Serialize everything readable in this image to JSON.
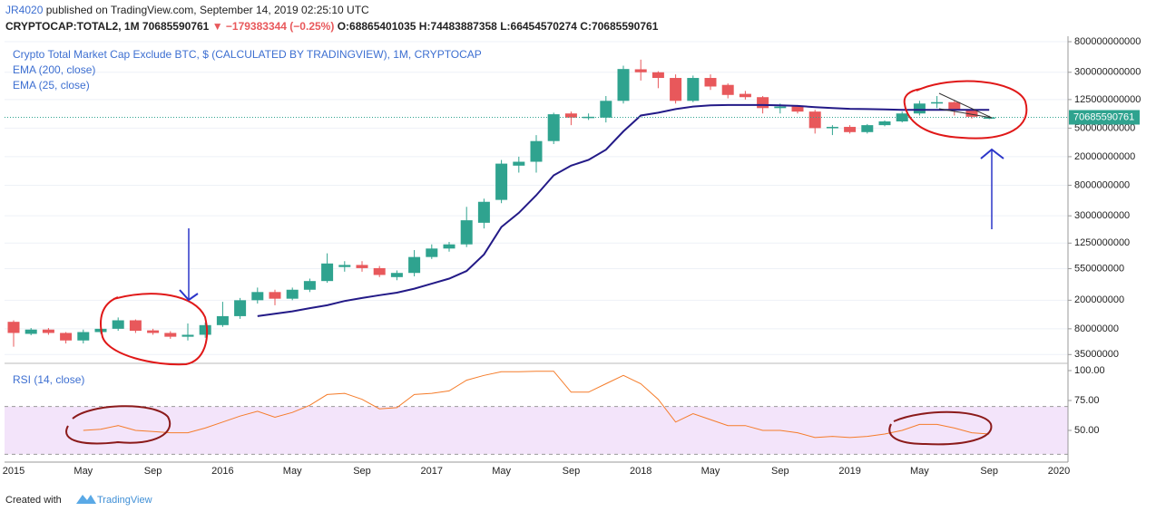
{
  "header": {
    "author": "JR4020",
    "published": "published on TradingView.com, September 14, 2019 02:25:10 UTC",
    "symbol": "CRYPTOCAP:TOTAL2, 1M",
    "last": "70685590761",
    "change": "▼ −179383344 (−0.25%)",
    "ohlc": [
      "O:68865401035",
      "H:74483887358",
      "L:66454570274",
      "C:70685590761"
    ]
  },
  "footer": {
    "created": "Created with",
    "brand": "TradingView"
  },
  "chart_data": [
    {
      "type": "candlestick",
      "title": "Crypto Total Market Cap Exclude BTC, $ (CALCULATED BY TRADINGVIEW), 1M, CRYPTOCAP",
      "studies": [
        "EMA (200, close)",
        "EMA (25, close)"
      ],
      "categories": [
        "2015",
        null,
        null,
        null,
        "May",
        null,
        null,
        null,
        "Sep",
        null,
        null,
        null,
        "2016",
        null,
        null,
        null,
        "May",
        null,
        null,
        null,
        "Sep",
        null,
        null,
        null,
        "2017",
        null,
        null,
        null,
        "May",
        null,
        null,
        null,
        "Sep",
        null,
        null,
        null,
        "2018",
        null,
        null,
        null,
        "May",
        null,
        null,
        null,
        "Sep",
        null,
        null,
        null,
        "2019",
        null,
        null,
        null,
        "May",
        null,
        null,
        null,
        "Sep",
        null,
        null,
        null,
        "2020"
      ],
      "open": [
        100000000.0,
        68000000.0,
        78000000.0,
        70000000.0,
        55000000.0,
        72000000.0,
        80000000.0,
        105000000.0,
        76000000.0,
        70000000.0,
        62000000.0,
        66000000.0,
        90000000.0,
        120000000.0,
        200000000.0,
        260000000.0,
        210000000.0,
        280000000.0,
        370000000.0,
        580000000.0,
        620000000.0,
        560000000.0,
        420000000.0,
        480000000.0,
        800000000.0,
        1050000000.0,
        1200000000.0,
        2400000000.0,
        5000000000.0,
        15000000000.0,
        17000000000.0,
        33000000000.0,
        80000000000.0,
        70000000000.0,
        70000000000.0,
        120000000000.0,
        330000000000.0,
        300000000000.0,
        250000000000.0,
        120000000000.0,
        250000000000.0,
        200000000000.0,
        150000000000.0,
        135000000000.0,
        95000000000.0,
        100000000000.0,
        85000000000.0,
        50000000000.0,
        52000000000.0,
        44000000000.0,
        55000000000.0,
        62000000000.0,
        80000000000.0,
        110000000000.0,
        115000000000.0,
        90000000000.0,
        68865401035,
        null,
        null,
        null,
        null
      ],
      "high": [
        105000000.0,
        82000000.0,
        82000000.0,
        72000000.0,
        78000000.0,
        85000000.0,
        115000000.0,
        108000000.0,
        80000000.0,
        74000000.0,
        95000000.0,
        98000000.0,
        190000000.0,
        215000000.0,
        300000000.0,
        280000000.0,
        300000000.0,
        400000000.0,
        900000000.0,
        700000000.0,
        700000000.0,
        600000000.0,
        520000000.0,
        1000000000.0,
        1200000000.0,
        1300000000.0,
        4000000000.0,
        5200000000.0,
        18000000000.0,
        20000000000.0,
        40000000000.0,
        82000000000.0,
        85000000000.0,
        80000000000.0,
        140000000000.0,
        370000000000.0,
        450000000000.0,
        310000000000.0,
        280000000000.0,
        270000000000.0,
        280000000000.0,
        210000000000.0,
        165000000000.0,
        140000000000.0,
        110000000000.0,
        105000000000.0,
        90000000000.0,
        55000000000.0,
        55000000000.0,
        57000000000.0,
        64000000000.0,
        85000000000.0,
        120000000000.0,
        140000000000.0,
        120000000000.0,
        95000000000.0,
        74483887358,
        null,
        null,
        null,
        null
      ],
      "low": [
        45000000.0,
        65000000.0,
        66000000.0,
        50000000.0,
        50000000.0,
        68000000.0,
        75000000.0,
        70000000.0,
        66000000.0,
        58000000.0,
        55000000.0,
        60000000.0,
        85000000.0,
        110000000.0,
        180000000.0,
        170000000.0,
        200000000.0,
        260000000.0,
        350000000.0,
        500000000.0,
        500000000.0,
        420000000.0,
        380000000.0,
        430000000.0,
        750000000.0,
        950000000.0,
        1100000000.0,
        2000000000.0,
        4500000000.0,
        12000000000.0,
        12000000000.0,
        30000000000.0,
        55000000000.0,
        65000000000.0,
        60000000000.0,
        110000000000.0,
        230000000000.0,
        180000000000.0,
        110000000000.0,
        115000000000.0,
        170000000000.0,
        130000000000.0,
        125000000000.0,
        80000000000.0,
        80000000000.0,
        80000000000.0,
        42000000000.0,
        40000000000.0,
        42000000000.0,
        42000000000.0,
        53000000000.0,
        60000000000.0,
        75000000000.0,
        95000000000.0,
        75000000000.0,
        68000000000.0,
        66454570274,
        null,
        null,
        null,
        null
      ],
      "close": [
        70000000.0,
        78000000.0,
        70000000.0,
        55000000.0,
        72000000.0,
        80000000.0,
        105000000.0,
        75000000.0,
        70000000.0,
        62000000.0,
        66000000.0,
        90000000.0,
        120000000.0,
        200000000.0,
        260000000.0,
        210000000.0,
        280000000.0,
        370000000.0,
        650000000.0,
        620000000.0,
        560000000.0,
        450000000.0,
        480000000.0,
        800000000.0,
        1050000000.0,
        1200000000.0,
        2600000000.0,
        4700000000.0,
        16000000000.0,
        17000000000.0,
        33000000000.0,
        78000000000.0,
        70000000000.0,
        72000000000.0,
        120000000000.0,
        333000000000.0,
        300000000000.0,
        250000000000.0,
        120000000000.0,
        250000000000.0,
        190000000000.0,
        145000000000.0,
        135000000000.0,
        95000000000.0,
        100000000000.0,
        85000000000.0,
        50000000000.0,
        52000000000.0,
        44000000000.0,
        55000000000.0,
        62000000000.0,
        80000000000.0,
        110000000000.0,
        115000000000.0,
        90000000000.0,
        72000000000.0,
        70685590761,
        null,
        null,
        null,
        null
      ],
      "up_color": "#2fa38f",
      "down_color": "#e8585b",
      "ema": {
        "color": "#231a87",
        "values": [
          null,
          null,
          null,
          null,
          null,
          null,
          null,
          null,
          null,
          null,
          null,
          null,
          null,
          null,
          120000000.0,
          130000000.0,
          140000000.0,
          155000000.0,
          170000000.0,
          195000000.0,
          215000000.0,
          235000000.0,
          255000000.0,
          290000000.0,
          340000000.0,
          400000000.0,
          510000000.0,
          870000000.0,
          2100000000.0,
          3300000000.0,
          5800000000.0,
          11000000000.0,
          15000000000.0,
          18000000000.0,
          25000000000.0,
          45000000000.0,
          75000000000.0,
          82000000000.0,
          92000000000.0,
          100000000000.0,
          104000000000.0,
          105000000000.0,
          105000000000.0,
          105000000000.0,
          104000000000.0,
          102000000000.0,
          98000000000.0,
          95000000000.0,
          93000000000.0,
          92000000000.0,
          91000000000.0,
          90000000000.0,
          90000000000.0,
          90000000000.0,
          90000000000.0,
          90000000000.0,
          90000000000.0,
          null,
          null,
          null,
          null
        ]
      },
      "log_scale": true,
      "grid": true,
      "price_line": true,
      "ylim": [
        26400000,
        953000000000
      ],
      "yticks": [
        800000000000,
        300000000000,
        125000000000,
        50000000000,
        20000000000,
        8000000000,
        3000000000,
        1250000000,
        550000000,
        200000000,
        80000000,
        35000000
      ]
    },
    {
      "type": "line",
      "title": "RSI (14, close)",
      "color": "#f57c2a",
      "values": [
        null,
        null,
        null,
        null,
        50,
        51,
        54,
        50,
        49,
        48,
        48,
        52,
        57,
        62,
        66,
        61,
        65,
        71,
        80,
        81,
        76,
        68,
        69,
        80,
        81,
        83,
        92,
        96,
        99,
        99,
        99.5,
        99.5,
        82,
        82,
        89,
        96,
        89,
        76,
        57,
        64,
        59,
        54,
        54,
        50,
        50,
        48,
        44,
        45,
        44,
        45,
        47,
        50,
        55,
        55,
        52,
        48,
        47,
        null,
        null,
        null,
        null
      ],
      "band": [
        30,
        70
      ],
      "band_color": "#f3e4fa",
      "ylim": [
        25,
        105.3
      ],
      "yticks": [
        {
          "value": 100,
          "label": "100.00"
        },
        {
          "value": 75,
          "label": "75.00"
        },
        {
          "value": 50,
          "label": "50.00"
        }
      ]
    }
  ]
}
